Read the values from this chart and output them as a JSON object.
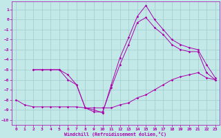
{
  "xlabel": "Windchill (Refroidissement éolien,°C)",
  "background_color": "#c2e8e8",
  "grid_color": "#a0cccc",
  "line_color": "#aa00aa",
  "xlim": [
    -0.5,
    23.5
  ],
  "ylim": [
    -10.5,
    1.8
  ],
  "xticks": [
    0,
    1,
    2,
    3,
    4,
    5,
    6,
    7,
    8,
    9,
    10,
    11,
    12,
    13,
    14,
    15,
    16,
    17,
    18,
    19,
    20,
    21,
    22,
    23
  ],
  "yticks": [
    1,
    0,
    -1,
    -2,
    -3,
    -4,
    -5,
    -6,
    -7,
    -8,
    -9,
    -10
  ],
  "line1_x": [
    0,
    1,
    2,
    3,
    4,
    5,
    6,
    7,
    8,
    9,
    10,
    11,
    12,
    13,
    14,
    15,
    16,
    17,
    18,
    19,
    20,
    21,
    22,
    23
  ],
  "line1_y": [
    -8.0,
    -8.5,
    -8.7,
    -8.7,
    -8.7,
    -8.7,
    -8.7,
    -8.7,
    -8.8,
    -8.8,
    -8.8,
    -8.8,
    -8.5,
    -8.3,
    -7.8,
    -7.5,
    -7.0,
    -6.5,
    -6.0,
    -5.7,
    -5.5,
    -5.3,
    -5.8,
    -6.0
  ],
  "line2_x": [
    2,
    3,
    4,
    5,
    6,
    7,
    8,
    9,
    10,
    11,
    12,
    13,
    14,
    15,
    16,
    17,
    18,
    19,
    20,
    21,
    22,
    23
  ],
  "line2_y": [
    -5.0,
    -5.0,
    -5.0,
    -5.0,
    -6.0,
    -6.5,
    -8.8,
    -9.2,
    -9.2,
    -6.8,
    -4.5,
    -2.5,
    -0.3,
    0.2,
    -0.8,
    -1.5,
    -2.5,
    -3.0,
    -3.2,
    -3.2,
    -5.3,
    -6.0
  ],
  "line3_x": [
    2,
    3,
    4,
    5,
    6,
    7,
    8,
    9,
    10,
    11,
    12,
    13,
    14,
    15,
    16,
    17,
    18,
    19,
    20,
    21,
    22,
    23
  ],
  "line3_y": [
    -5.0,
    -5.0,
    -5.0,
    -5.0,
    -5.5,
    -6.5,
    -8.8,
    -9.0,
    -9.3,
    -6.5,
    -3.8,
    -1.8,
    0.3,
    1.4,
    0.0,
    -1.0,
    -2.0,
    -2.5,
    -2.8,
    -3.0,
    -4.5,
    -5.8
  ]
}
